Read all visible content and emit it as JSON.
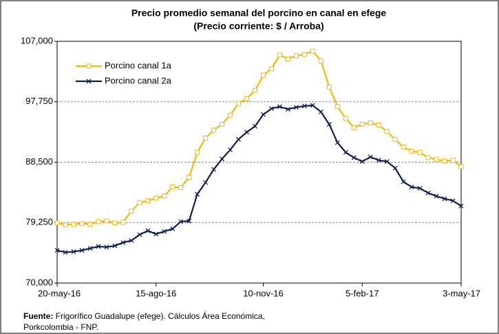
{
  "chart_data": {
    "type": "line",
    "title": "Precio promedio semanal del porcino en canal en efege",
    "subtitle": "(Precio corriente: $ / Arroba)",
    "categories": [
      "20-may-16",
      null,
      null,
      null,
      null,
      null,
      null,
      null,
      null,
      null,
      null,
      null,
      "15-ago-16",
      null,
      null,
      null,
      null,
      null,
      null,
      null,
      null,
      null,
      null,
      null,
      null,
      "10-nov-16",
      null,
      null,
      null,
      null,
      null,
      null,
      null,
      null,
      null,
      null,
      null,
      "5-feb-17",
      null,
      null,
      null,
      null,
      null,
      null,
      null,
      null,
      null,
      null,
      null,
      "3-may-17"
    ],
    "series": [
      {
        "name": "Porcino canal 1a",
        "color": "#f5b800",
        "marker": "square",
        "values": [
          79200,
          78900,
          79000,
          79100,
          79000,
          79400,
          79500,
          79200,
          79300,
          81000,
          82300,
          82600,
          83000,
          83300,
          84700,
          84600,
          86200,
          90000,
          92200,
          93400,
          94300,
          95700,
          97500,
          98200,
          99500,
          101800,
          102800,
          104900,
          104300,
          104800,
          105000,
          105500,
          104000,
          100000,
          97000,
          95200,
          93800,
          94300,
          94500,
          94200,
          93200,
          92000,
          90800,
          90200,
          90000,
          89200,
          88900,
          88700,
          88800,
          87800
        ]
      },
      {
        "name": "Porcino canal 2a",
        "color": "#0d1f4f",
        "marker": "cross",
        "values": [
          75000,
          74700,
          74800,
          75000,
          75300,
          75600,
          75500,
          75700,
          76200,
          76500,
          77400,
          78000,
          77500,
          77900,
          78300,
          79400,
          79500,
          83600,
          85400,
          87400,
          89000,
          90400,
          92000,
          93100,
          94000,
          95800,
          96700,
          97000,
          96600,
          96900,
          97100,
          97200,
          96200,
          94300,
          91500,
          90000,
          89200,
          88600,
          89300,
          88800,
          88600,
          87600,
          85500,
          84700,
          84500,
          83800,
          83300,
          82900,
          82600,
          81800
        ]
      }
    ],
    "ylim": [
      70000,
      107000
    ],
    "yticks": [
      {
        "value": 70000,
        "label": "70,000"
      },
      {
        "value": 79250,
        "label": "79,250"
      },
      {
        "value": 88500,
        "label": "88,500"
      },
      {
        "value": 97750,
        "label": "97,750"
      },
      {
        "value": 107000,
        "label": "107,000"
      }
    ],
    "grid": true,
    "legend": "upper-left",
    "source": {
      "label": "Fuente:",
      "text": "Frigorífico Guadalupe (efege). Cálculos Área Económica,",
      "text2": "Porkcolombia  - FNP."
    }
  }
}
